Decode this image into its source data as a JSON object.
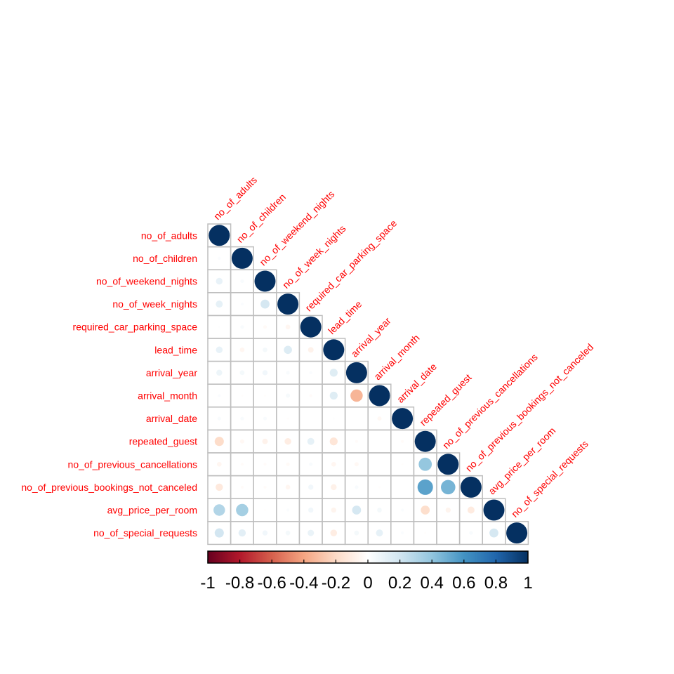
{
  "chart_data": {
    "type": "heatmap",
    "style": "circle",
    "layout": "lower-triangle",
    "variables": [
      "no_of_adults",
      "no_of_children",
      "no_of_weekend_nights",
      "no_of_week_nights",
      "required_car_parking_space",
      "lead_time",
      "arrival_year",
      "arrival_month",
      "arrival_date",
      "repeated_guest",
      "no_of_previous_cancellations",
      "no_of_previous_bookings_not_canceled",
      "avg_price_per_room",
      "no_of_special_requests"
    ],
    "matrix": [
      [
        1
      ],
      [
        0.02,
        1
      ],
      [
        0.1,
        0.03,
        1
      ],
      [
        0.11,
        0.02,
        0.18,
        1
      ],
      [
        0.01,
        0.03,
        -0.03,
        -0.05,
        1
      ],
      [
        0.1,
        -0.05,
        0.05,
        0.15,
        -0.07,
        1
      ],
      [
        0.08,
        0.05,
        0.06,
        0.03,
        0.02,
        0.14,
        1
      ],
      [
        0.02,
        -0.01,
        -0.01,
        0.04,
        -0.02,
        0.14,
        -0.34,
        1
      ],
      [
        0.03,
        0.03,
        0.03,
        -0.01,
        0.0,
        0.01,
        0.0,
        -0.04,
        1
      ],
      [
        -0.19,
        -0.04,
        -0.07,
        -0.1,
        0.11,
        -0.14,
        -0.02,
        0.0,
        -0.02,
        1
      ],
      [
        -0.05,
        -0.02,
        -0.02,
        -0.03,
        0.03,
        -0.05,
        -0.04,
        0.0,
        -0.01,
        0.39,
        1
      ],
      [
        -0.12,
        -0.02,
        -0.02,
        -0.05,
        0.06,
        -0.08,
        0.03,
        -0.01,
        0.0,
        0.54,
        0.47,
        1
      ],
      [
        0.3,
        0.34,
        -0.01,
        0.02,
        0.06,
        -0.06,
        0.18,
        0.05,
        0.02,
        -0.18,
        -0.06,
        -0.11,
        1
      ],
      [
        0.19,
        0.12,
        0.06,
        0.05,
        0.09,
        -0.1,
        0.05,
        0.11,
        0.02,
        -0.01,
        -0.0,
        0.03,
        0.18,
        1
      ]
    ],
    "colorbar": {
      "ticks": [
        "-1",
        "-0.8",
        "-0.6",
        "-0.4",
        "-0.2",
        "0",
        "0.2",
        "0.4",
        "0.6",
        "0.8",
        "1"
      ],
      "range": [
        -1,
        1
      ]
    },
    "colors": {
      "palette": [
        "#67001f",
        "#b2182b",
        "#d6604d",
        "#f4a582",
        "#fddbc7",
        "#ffffff",
        "#d1e5f0",
        "#92c5de",
        "#4393c3",
        "#2166ac",
        "#053061"
      ],
      "label": "#ff0000",
      "grid": "#bebebe"
    }
  }
}
